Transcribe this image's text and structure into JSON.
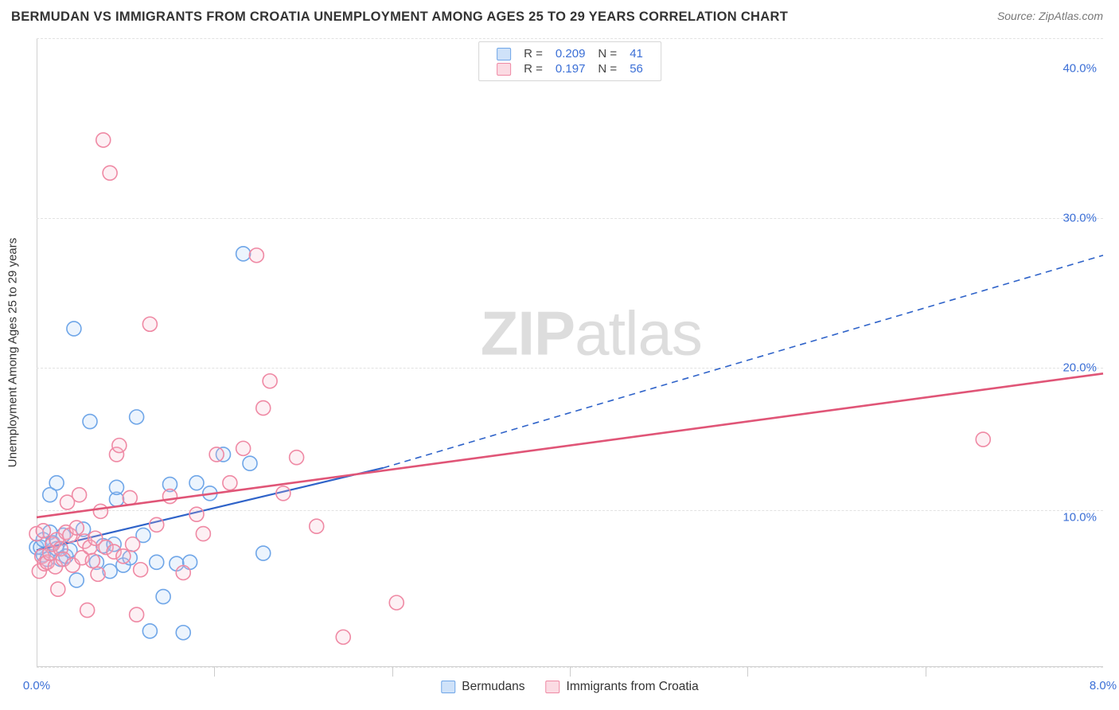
{
  "header": {
    "title": "BERMUDAN VS IMMIGRANTS FROM CROATIA UNEMPLOYMENT AMONG AGES 25 TO 29 YEARS CORRELATION CHART",
    "source": "Source: ZipAtlas.com"
  },
  "watermark": {
    "zip": "ZIP",
    "atlas": "atlas"
  },
  "chart": {
    "type": "scatter",
    "y_axis_label": "Unemployment Among Ages 25 to 29 years",
    "xlim": [
      0.0,
      8.0
    ],
    "ylim": [
      0.0,
      42.0
    ],
    "x_ticks_major": [
      0.0,
      8.0
    ],
    "x_ticks_minor": [
      1.33,
      2.67,
      4.0,
      5.33,
      6.67
    ],
    "y_ticks": [
      10.0,
      20.0,
      30.0,
      40.0
    ],
    "y_grid": [
      0.0,
      10.5,
      20.0,
      30.0,
      42.0
    ],
    "tick_label_color": "#3b6fd6",
    "grid_color": "#e2e2e2",
    "axis_color": "#d0d0d0",
    "background_color": "#ffffff",
    "marker_radius": 9,
    "marker_stroke_width": 1.6,
    "marker_fill_opacity": 0.22,
    "series": [
      {
        "name": "Bermudans",
        "color_stroke": "#6fa6e8",
        "color_fill": "#a9cdf4",
        "swatch_border": "#6fa6e8",
        "swatch_fill": "#cfe2f9",
        "r": "0.209",
        "n": "41",
        "trend": {
          "solid": {
            "x1": 0.0,
            "y1": 7.8,
            "x2": 2.6,
            "y2": 13.3
          },
          "dashed": {
            "x1": 2.6,
            "y1": 13.3,
            "x2": 8.0,
            "y2": 27.5
          },
          "color": "#2f63c9",
          "width": 2.2,
          "dash": "8 6"
        },
        "points": [
          [
            0.0,
            8.0
          ],
          [
            0.03,
            8.0
          ],
          [
            0.05,
            7.5
          ],
          [
            0.05,
            8.5
          ],
          [
            0.08,
            7.2
          ],
          [
            0.1,
            11.5
          ],
          [
            0.1,
            9.0
          ],
          [
            0.12,
            8.3
          ],
          [
            0.15,
            12.3
          ],
          [
            0.15,
            7.9
          ],
          [
            0.18,
            7.2
          ],
          [
            0.2,
            8.8
          ],
          [
            0.22,
            7.4
          ],
          [
            0.25,
            7.8
          ],
          [
            0.28,
            22.6
          ],
          [
            0.3,
            5.8
          ],
          [
            0.35,
            9.2
          ],
          [
            0.4,
            16.4
          ],
          [
            0.45,
            7.0
          ],
          [
            0.5,
            8.1
          ],
          [
            0.55,
            6.4
          ],
          [
            0.58,
            8.2
          ],
          [
            0.6,
            11.2
          ],
          [
            0.6,
            12.0
          ],
          [
            0.65,
            6.8
          ],
          [
            0.7,
            7.3
          ],
          [
            0.75,
            16.7
          ],
          [
            0.8,
            8.8
          ],
          [
            0.85,
            2.4
          ],
          [
            0.9,
            7.0
          ],
          [
            0.95,
            4.7
          ],
          [
            1.0,
            12.2
          ],
          [
            1.05,
            6.9
          ],
          [
            1.1,
            2.3
          ],
          [
            1.15,
            7.0
          ],
          [
            1.2,
            12.3
          ],
          [
            1.3,
            11.6
          ],
          [
            1.4,
            14.2
          ],
          [
            1.55,
            27.6
          ],
          [
            1.6,
            13.6
          ],
          [
            1.7,
            7.6
          ]
        ]
      },
      {
        "name": "Immigrants from Croatia",
        "color_stroke": "#ef89a4",
        "color_fill": "#f7bccb",
        "swatch_border": "#ef89a4",
        "swatch_fill": "#fbdbe3",
        "r": "0.197",
        "n": "56",
        "trend": {
          "solid": {
            "x1": 0.0,
            "y1": 10.0,
            "x2": 8.0,
            "y2": 19.6
          },
          "dashed": null,
          "color": "#e05577",
          "width": 2.6,
          "dash": null
        },
        "points": [
          [
            0.0,
            8.9
          ],
          [
            0.02,
            6.4
          ],
          [
            0.04,
            7.4
          ],
          [
            0.05,
            9.1
          ],
          [
            0.06,
            6.9
          ],
          [
            0.08,
            7.0
          ],
          [
            0.1,
            7.6
          ],
          [
            0.12,
            8.2
          ],
          [
            0.14,
            6.7
          ],
          [
            0.15,
            8.5
          ],
          [
            0.16,
            5.2
          ],
          [
            0.18,
            7.9
          ],
          [
            0.2,
            7.2
          ],
          [
            0.22,
            9.0
          ],
          [
            0.23,
            11.0
          ],
          [
            0.25,
            8.8
          ],
          [
            0.27,
            6.8
          ],
          [
            0.3,
            9.3
          ],
          [
            0.32,
            11.5
          ],
          [
            0.34,
            7.3
          ],
          [
            0.36,
            8.4
          ],
          [
            0.38,
            3.8
          ],
          [
            0.4,
            8.0
          ],
          [
            0.42,
            7.1
          ],
          [
            0.44,
            8.6
          ],
          [
            0.46,
            6.2
          ],
          [
            0.48,
            10.4
          ],
          [
            0.5,
            35.2
          ],
          [
            0.52,
            8.0
          ],
          [
            0.55,
            33.0
          ],
          [
            0.58,
            7.7
          ],
          [
            0.6,
            14.2
          ],
          [
            0.62,
            14.8
          ],
          [
            0.65,
            7.4
          ],
          [
            0.7,
            11.3
          ],
          [
            0.72,
            8.2
          ],
          [
            0.75,
            3.5
          ],
          [
            0.78,
            6.5
          ],
          [
            0.85,
            22.9
          ],
          [
            0.9,
            9.5
          ],
          [
            1.0,
            11.4
          ],
          [
            1.1,
            6.3
          ],
          [
            1.2,
            10.2
          ],
          [
            1.25,
            8.9
          ],
          [
            1.35,
            14.2
          ],
          [
            1.45,
            12.3
          ],
          [
            1.55,
            14.6
          ],
          [
            1.65,
            27.5
          ],
          [
            1.7,
            17.3
          ],
          [
            1.75,
            19.1
          ],
          [
            1.85,
            11.6
          ],
          [
            1.95,
            14.0
          ],
          [
            2.1,
            9.4
          ],
          [
            2.3,
            2.0
          ],
          [
            2.7,
            4.3
          ],
          [
            7.1,
            15.2
          ]
        ]
      }
    ]
  },
  "legend_top": {
    "r_label": "R =",
    "n_label": "N =",
    "text_color": "#444444",
    "value_color": "#3b6fd6"
  },
  "legend_bottom": {
    "items": [
      "Bermudans",
      "Immigrants from Croatia"
    ]
  }
}
